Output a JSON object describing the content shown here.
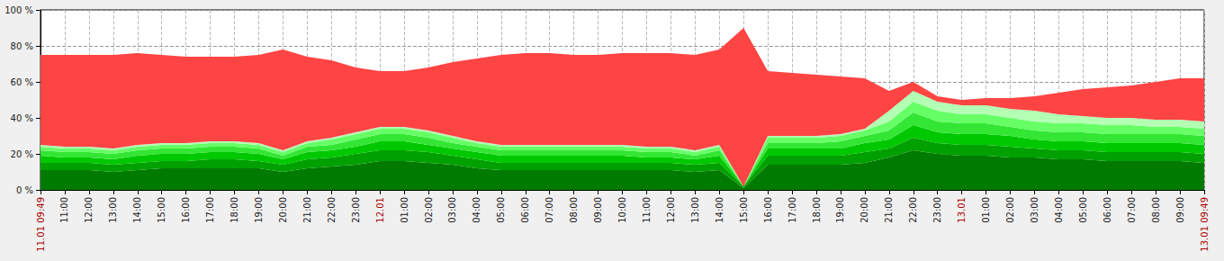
{
  "chart_data": {
    "type": "area",
    "stacked": true,
    "grid": true,
    "categories": [
      "11.01 09:49",
      "11:00",
      "12:00",
      "13:00",
      "14:00",
      "15:00",
      "16:00",
      "17:00",
      "18:00",
      "19:00",
      "20:00",
      "21:00",
      "22:00",
      "23:00",
      "12.01",
      "01:00",
      "02:00",
      "03:00",
      "04:00",
      "05:00",
      "06:00",
      "07:00",
      "08:00",
      "09:00",
      "10:00",
      "11:00",
      "12:00",
      "13:00",
      "14:00",
      "15:00",
      "16:00",
      "17:00",
      "18:00",
      "19:00",
      "20:00",
      "21:00",
      "22:00",
      "23:00",
      "13.01",
      "01:00",
      "02:00",
      "03:00",
      "04:00",
      "05:00",
      "06:00",
      "07:00",
      "08:00",
      "09:00",
      "13.01 09:49"
    ],
    "ylim": [
      0,
      100
    ],
    "yticks": [
      {
        "value": 0,
        "label": "0 %"
      },
      {
        "value": 20,
        "label": "20 %"
      },
      {
        "value": 40,
        "label": "40 %"
      },
      {
        "value": 60,
        "label": "60 %"
      },
      {
        "value": 80,
        "label": "80 %"
      },
      {
        "value": 100,
        "label": "100 %"
      }
    ],
    "series": [
      {
        "color": "#007a00",
        "values": [
          11,
          11,
          11,
          10,
          11,
          12,
          12,
          12,
          12,
          12,
          10,
          12,
          13,
          14,
          16,
          16,
          15,
          14,
          12,
          11,
          11,
          11,
          11,
          11,
          11,
          11,
          11,
          10,
          11,
          1,
          14,
          14,
          14,
          14,
          15,
          18,
          22,
          20,
          19,
          19,
          18,
          18,
          17,
          17,
          16,
          16,
          16,
          16,
          15
        ]
      },
      {
        "color": "#00a000",
        "values": [
          4,
          4,
          4,
          4,
          4,
          4,
          4,
          5,
          5,
          4,
          4,
          5,
          5,
          6,
          6,
          6,
          6,
          5,
          5,
          4,
          4,
          4,
          4,
          4,
          4,
          4,
          4,
          4,
          4,
          1,
          5,
          5,
          5,
          5,
          6,
          5,
          7,
          6,
          6,
          6,
          6,
          5,
          5,
          5,
          5,
          5,
          5,
          5,
          5
        ]
      },
      {
        "color": "#00c800",
        "values": [
          4,
          3,
          3,
          3,
          4,
          4,
          4,
          4,
          4,
          4,
          3,
          4,
          4,
          4,
          5,
          5,
          4,
          4,
          4,
          4,
          4,
          4,
          4,
          4,
          4,
          3,
          3,
          3,
          4,
          0,
          4,
          4,
          4,
          4,
          5,
          5,
          7,
          6,
          6,
          6,
          6,
          5,
          5,
          5,
          5,
          5,
          5,
          5,
          5
        ]
      },
      {
        "color": "#33e633",
        "values": [
          3,
          3,
          3,
          3,
          3,
          3,
          3,
          3,
          3,
          3,
          2,
          3,
          3,
          4,
          4,
          4,
          4,
          3,
          3,
          3,
          3,
          3,
          3,
          3,
          3,
          3,
          3,
          2,
          3,
          0,
          3,
          3,
          3,
          4,
          4,
          5,
          7,
          6,
          6,
          6,
          5,
          5,
          5,
          5,
          5,
          5,
          5,
          5,
          5
        ]
      },
      {
        "color": "#66ff66",
        "values": [
          2,
          2,
          2,
          2,
          2,
          2,
          2,
          2,
          2,
          2,
          2,
          2,
          3,
          3,
          3,
          3,
          3,
          3,
          2,
          2,
          2,
          2,
          2,
          2,
          2,
          2,
          2,
          2,
          2,
          0,
          3,
          3,
          3,
          3,
          3,
          5,
          6,
          6,
          5,
          5,
          5,
          5,
          5,
          5,
          5,
          5,
          4,
          4,
          4
        ]
      },
      {
        "color": "#b3ffb3",
        "values": [
          1,
          1,
          1,
          1,
          1,
          1,
          1,
          1,
          1,
          1,
          1,
          1,
          1,
          1,
          1,
          1,
          1,
          1,
          1,
          1,
          1,
          1,
          1,
          1,
          1,
          1,
          1,
          1,
          1,
          0,
          1,
          1,
          1,
          1,
          1,
          6,
          6,
          5,
          5,
          5,
          5,
          6,
          5,
          4,
          4,
          4,
          4,
          4,
          4
        ]
      },
      {
        "color": "#ff4444",
        "values": [
          50,
          51,
          51,
          52,
          51,
          49,
          48,
          47,
          47,
          49,
          56,
          47,
          43,
          36,
          31,
          31,
          35,
          41,
          46,
          50,
          51,
          51,
          50,
          50,
          51,
          52,
          52,
          53,
          53,
          88,
          36,
          35,
          34,
          32,
          28,
          11,
          5,
          3,
          3,
          4,
          6,
          8,
          12,
          15,
          17,
          18,
          21,
          23,
          24
        ]
      }
    ]
  }
}
